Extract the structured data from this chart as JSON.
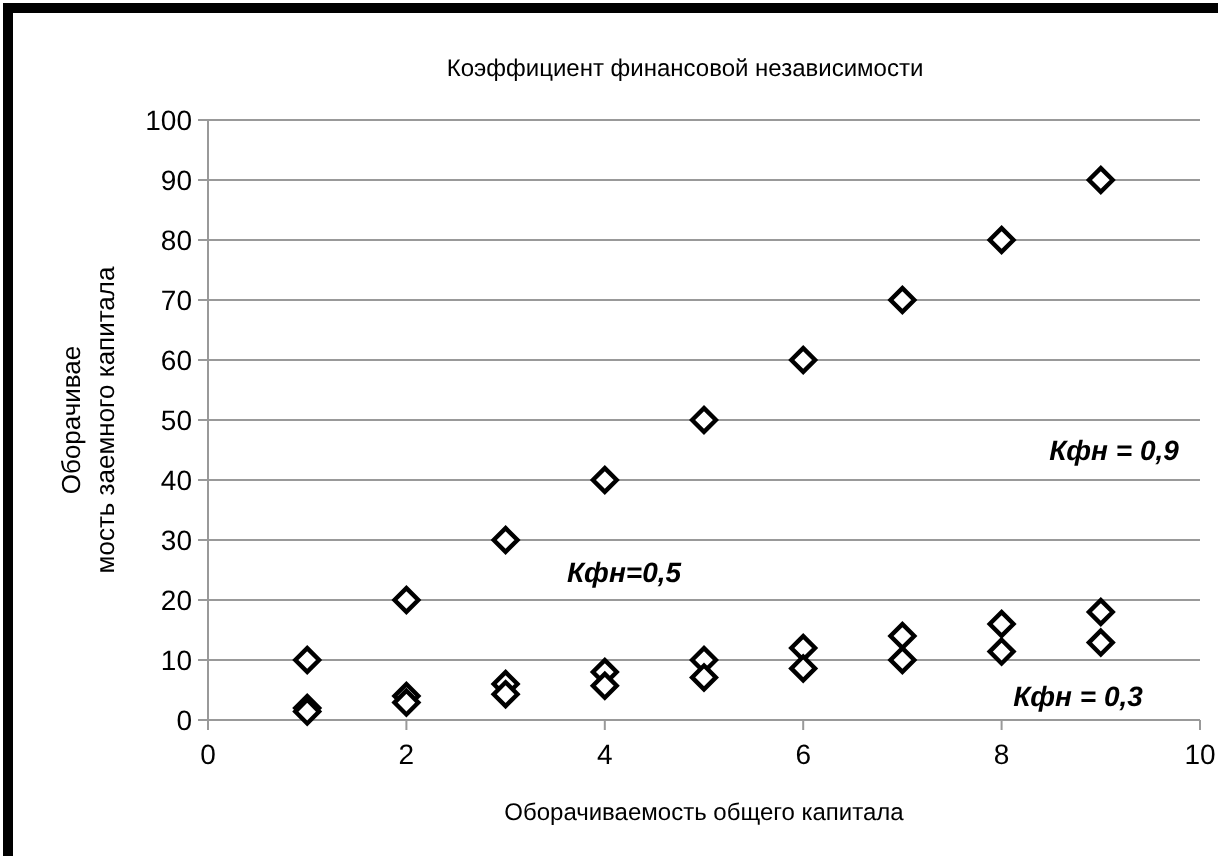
{
  "chart_data": {
    "type": "scatter",
    "title": "Коэффициент финансовой независимости",
    "xlabel": "Оборачиваемость общего капитала",
    "ylabel": "Оборачивае\nмость заемного капитала",
    "x": [
      1,
      2,
      3,
      4,
      5,
      6,
      7,
      8,
      9
    ],
    "series": [
      {
        "color": "#000000",
        "values": [
          10,
          20,
          30,
          40,
          50,
          60,
          70,
          80,
          90
        ]
      },
      {
        "color": "#000000",
        "values": [
          2,
          4,
          6,
          8,
          10,
          12,
          14,
          16,
          18
        ]
      },
      {
        "color": "#000000",
        "values": [
          1.4,
          2.9,
          4.3,
          5.7,
          7.1,
          8.6,
          10,
          11.4,
          12.9
        ]
      }
    ],
    "xlim": [
      0,
      10
    ],
    "xticks": [
      0,
      2,
      4,
      6,
      8,
      10
    ],
    "ylim": [
      0,
      100
    ],
    "yticks": [
      0,
      10,
      20,
      30,
      40,
      50,
      60,
      70,
      80,
      90,
      100
    ],
    "grid": "y",
    "marker": "diamond",
    "annotations": [
      "Кфн = 0,9",
      "Кфн=0,5",
      "Кфн = 0,3"
    ]
  }
}
